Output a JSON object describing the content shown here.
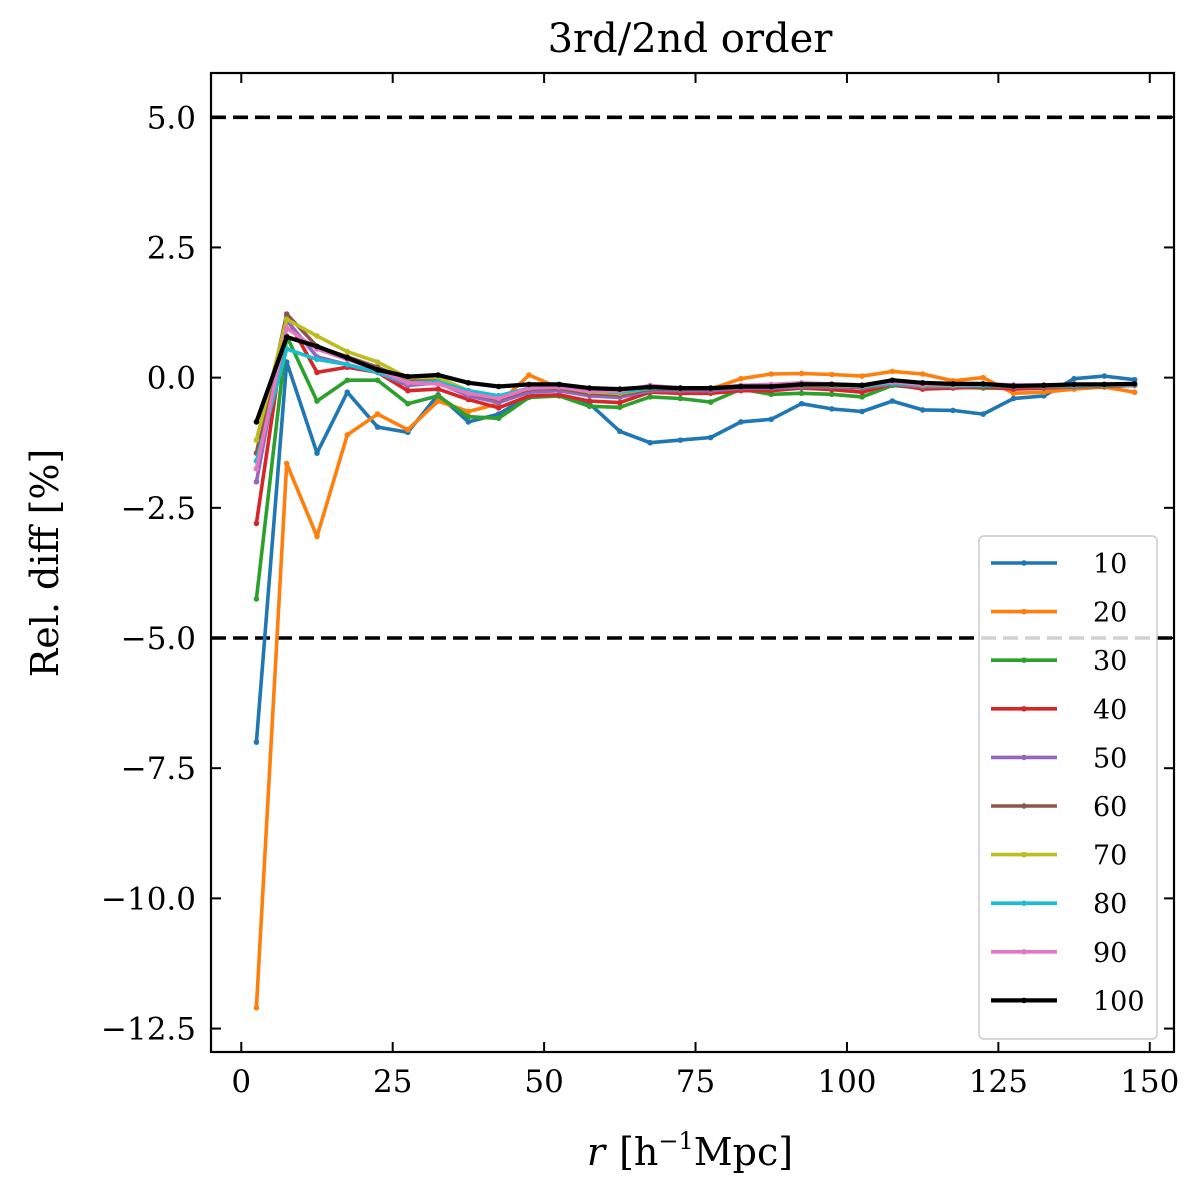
{
  "chart_data": {
    "type": "line",
    "title": "3rd/2nd order",
    "xlabel_var": "r",
    "xlabel_unit": "[h",
    "xlabel_sup": "−1",
    "xlabel_unit2": "Mpc]",
    "ylabel": "Rel. diff [%]",
    "xlim": [
      -5,
      154
    ],
    "ylim": [
      -12.95,
      5.85
    ],
    "xticks": [
      0,
      25,
      50,
      75,
      100,
      125,
      150
    ],
    "xtick_labels": [
      "0",
      "25",
      "50",
      "75",
      "100",
      "125",
      "150"
    ],
    "yticks": [
      5.0,
      2.5,
      0.0,
      -2.5,
      -5.0,
      -7.5,
      -10.0,
      -12.5
    ],
    "ytick_labels": [
      "5.0",
      "2.5",
      "0.0",
      "−2.5",
      "−5.0",
      "−7.5",
      "−10.0",
      "−12.5"
    ],
    "hlines": [
      5.0,
      -5.0
    ],
    "grid": false,
    "legend_position": "lower right",
    "x": [
      2.5,
      7.5,
      12.5,
      17.5,
      22.5,
      27.5,
      32.5,
      37.5,
      42.5,
      47.5,
      52.5,
      57.5,
      62.5,
      67.5,
      72.5,
      77.5,
      82.5,
      87.5,
      92.5,
      97.5,
      102.5,
      107.5,
      112.5,
      117.5,
      122.5,
      127.5,
      132.5,
      137.5,
      142.5,
      147.5
    ],
    "series": [
      {
        "name": "10",
        "color": "#1f77b4",
        "values": [
          -7.0,
          0.3,
          -1.45,
          -0.28,
          -0.95,
          -1.05,
          -0.33,
          -0.85,
          -0.7,
          -0.35,
          -0.35,
          -0.5,
          -1.03,
          -1.25,
          -1.2,
          -1.15,
          -0.85,
          -0.8,
          -0.5,
          -0.6,
          -0.65,
          -0.45,
          -0.62,
          -0.63,
          -0.7,
          -0.4,
          -0.35,
          -0.02,
          0.03,
          -0.04
        ]
      },
      {
        "name": "20",
        "color": "#ff7f0e",
        "values": [
          -12.1,
          -1.65,
          -3.05,
          -1.1,
          -0.7,
          -1.0,
          -0.45,
          -0.65,
          -0.5,
          0.05,
          -0.2,
          -0.3,
          -0.28,
          -0.2,
          -0.25,
          -0.22,
          -0.02,
          0.07,
          0.08,
          0.06,
          0.03,
          0.12,
          0.07,
          -0.06,
          0.0,
          -0.3,
          -0.28,
          -0.22,
          -0.18,
          -0.28
        ]
      },
      {
        "name": "30",
        "color": "#2ca02c",
        "values": [
          -4.25,
          0.8,
          -0.45,
          -0.05,
          -0.05,
          -0.5,
          -0.35,
          -0.75,
          -0.78,
          -0.38,
          -0.35,
          -0.55,
          -0.57,
          -0.37,
          -0.4,
          -0.47,
          -0.22,
          -0.32,
          -0.3,
          -0.32,
          -0.37,
          -0.15,
          -0.2,
          -0.18,
          -0.2,
          -0.2,
          -0.2,
          -0.18,
          -0.17,
          -0.15
        ]
      },
      {
        "name": "40",
        "color": "#d62728",
        "values": [
          -2.8,
          1.15,
          0.1,
          0.2,
          0.1,
          -0.25,
          -0.22,
          -0.42,
          -0.58,
          -0.35,
          -0.33,
          -0.45,
          -0.48,
          -0.28,
          -0.3,
          -0.3,
          -0.25,
          -0.25,
          -0.2,
          -0.23,
          -0.28,
          -0.12,
          -0.22,
          -0.2,
          -0.18,
          -0.22,
          -0.2,
          -0.17,
          -0.17,
          -0.15
        ]
      },
      {
        "name": "50",
        "color": "#9467bd",
        "values": [
          -2.0,
          1.1,
          0.4,
          0.25,
          0.1,
          -0.15,
          -0.1,
          -0.35,
          -0.48,
          -0.28,
          -0.25,
          -0.35,
          -0.38,
          -0.25,
          -0.25,
          -0.25,
          -0.2,
          -0.2,
          -0.18,
          -0.18,
          -0.2,
          -0.12,
          -0.18,
          -0.17,
          -0.16,
          -0.18,
          -0.18,
          -0.17,
          -0.16,
          -0.15
        ]
      },
      {
        "name": "60",
        "color": "#8c564b",
        "values": [
          -1.45,
          1.22,
          0.6,
          0.4,
          0.2,
          -0.05,
          -0.05,
          -0.3,
          -0.42,
          -0.22,
          -0.2,
          -0.3,
          -0.33,
          -0.22,
          -0.22,
          -0.22,
          -0.18,
          -0.18,
          -0.15,
          -0.16,
          -0.18,
          -0.1,
          -0.16,
          -0.15,
          -0.15,
          -0.17,
          -0.17,
          -0.16,
          -0.16,
          -0.14
        ]
      },
      {
        "name": "70",
        "color": "#bcbd22",
        "values": [
          -1.2,
          1.12,
          0.8,
          0.5,
          0.3,
          0.0,
          0.0,
          -0.25,
          -0.35,
          -0.2,
          -0.18,
          -0.27,
          -0.3,
          -0.2,
          -0.2,
          -0.2,
          -0.17,
          -0.16,
          -0.14,
          -0.15,
          -0.17,
          -0.1,
          -0.15,
          -0.15,
          -0.14,
          -0.16,
          -0.16,
          -0.15,
          -0.15,
          -0.14
        ]
      },
      {
        "name": "80",
        "color": "#17becf",
        "values": [
          -1.6,
          0.55,
          0.35,
          0.25,
          0.1,
          -0.1,
          -0.08,
          -0.25,
          -0.35,
          -0.2,
          -0.18,
          -0.25,
          -0.28,
          -0.2,
          -0.2,
          -0.2,
          -0.16,
          -0.15,
          -0.13,
          -0.14,
          -0.16,
          -0.1,
          -0.14,
          -0.14,
          -0.14,
          -0.15,
          -0.15,
          -0.15,
          -0.14,
          -0.14
        ]
      },
      {
        "name": "90",
        "color": "#e377c2",
        "values": [
          -1.75,
          0.95,
          0.55,
          0.35,
          0.15,
          -0.1,
          -0.12,
          -0.3,
          -0.4,
          -0.2,
          -0.18,
          -0.26,
          -0.26,
          -0.15,
          -0.2,
          -0.2,
          -0.15,
          -0.13,
          -0.1,
          -0.12,
          -0.14,
          -0.08,
          -0.13,
          -0.13,
          -0.12,
          -0.14,
          -0.14,
          -0.14,
          -0.13,
          -0.13
        ]
      },
      {
        "name": "100",
        "color": "#000000",
        "values": [
          -0.85,
          0.78,
          0.6,
          0.38,
          0.15,
          0.02,
          0.05,
          -0.1,
          -0.17,
          -0.13,
          -0.13,
          -0.2,
          -0.22,
          -0.18,
          -0.2,
          -0.2,
          -0.17,
          -0.17,
          -0.13,
          -0.13,
          -0.15,
          -0.05,
          -0.1,
          -0.12,
          -0.12,
          -0.16,
          -0.15,
          -0.13,
          -0.13,
          -0.12
        ]
      }
    ]
  }
}
